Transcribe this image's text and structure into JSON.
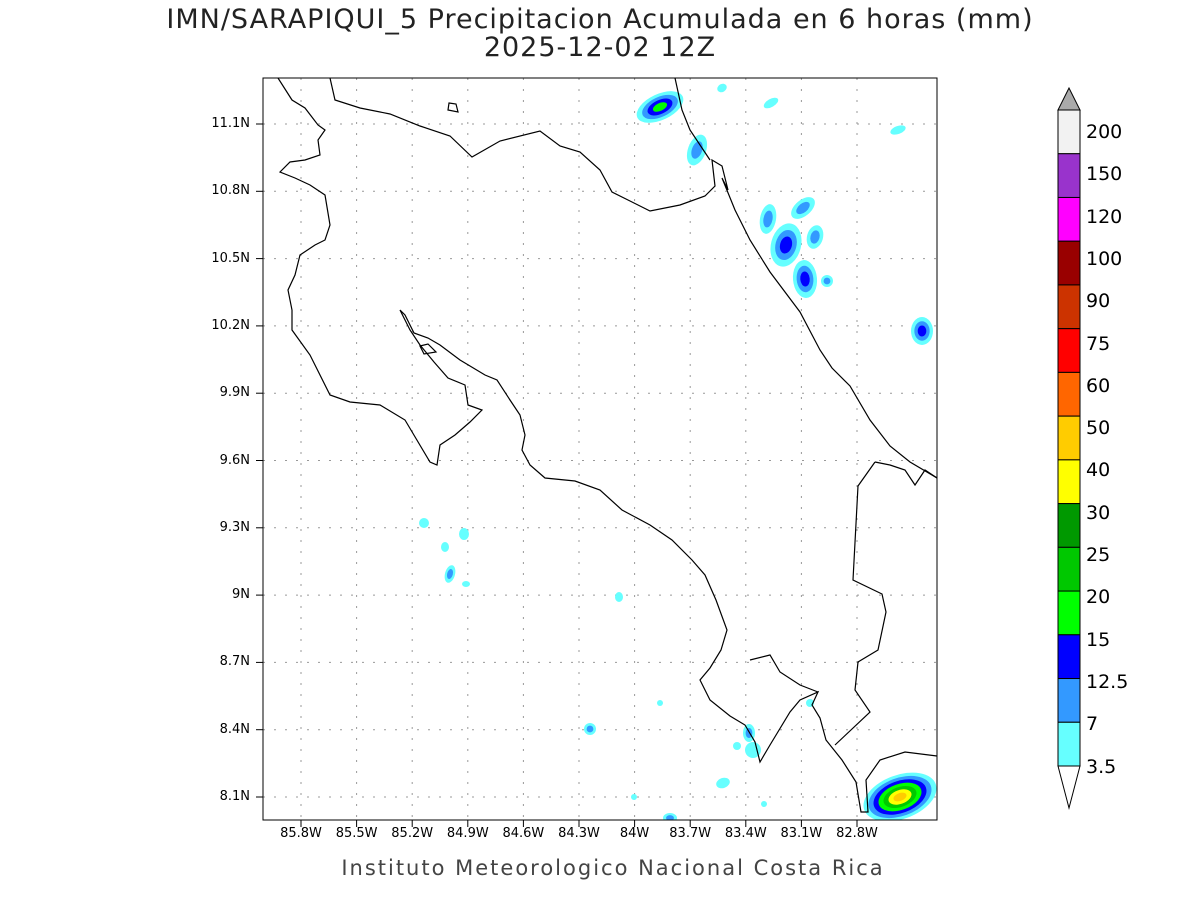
{
  "title": {
    "line1": "IMN/SARAPIQUI_5 Precipitacion Acumulada en 6 horas (mm)",
    "line2": "2025-12-02 12Z"
  },
  "map": {
    "region": "Costa Rica",
    "variable": "6-hour accumulated precipitation",
    "units": "mm",
    "lat_range": [
      7.99,
      11.3
    ],
    "lon_range": [
      -86.0,
      -82.4
    ],
    "gridlines": "dotted",
    "lat_labels": [
      "11.1N",
      "10.8N",
      "10.5N",
      "10.2N",
      "9.9N",
      "9.6N",
      "9.3N",
      "9N",
      "8.7N",
      "8.4N",
      "8.1N"
    ],
    "lon_labels": [
      "85.8W",
      "85.5W",
      "85.2W",
      "84.9W",
      "84.6W",
      "84.3W",
      "84W",
      "83.7W",
      "83.4W",
      "83.1W",
      "82.8W"
    ]
  },
  "colorbar": {
    "labels": [
      "200",
      "150",
      "120",
      "100",
      "90",
      "75",
      "60",
      "50",
      "40",
      "30",
      "25",
      "20",
      "15",
      "12.5",
      "7",
      "3.5"
    ],
    "colors": [
      "#f2f2f2",
      "#9933cc",
      "#ff00ff",
      "#990000",
      "#cc3300",
      "#ff0000",
      "#ff6600",
      "#ffcc00",
      "#ffff00",
      "#009900",
      "#00c800",
      "#00ff00",
      "#0000ff",
      "#3399ff",
      "#66ffff"
    ],
    "over_color": "#aaaaaa",
    "under_color": "#ffffff"
  },
  "footer": "Instituto Meteorologico Nacional Costa Rica"
}
